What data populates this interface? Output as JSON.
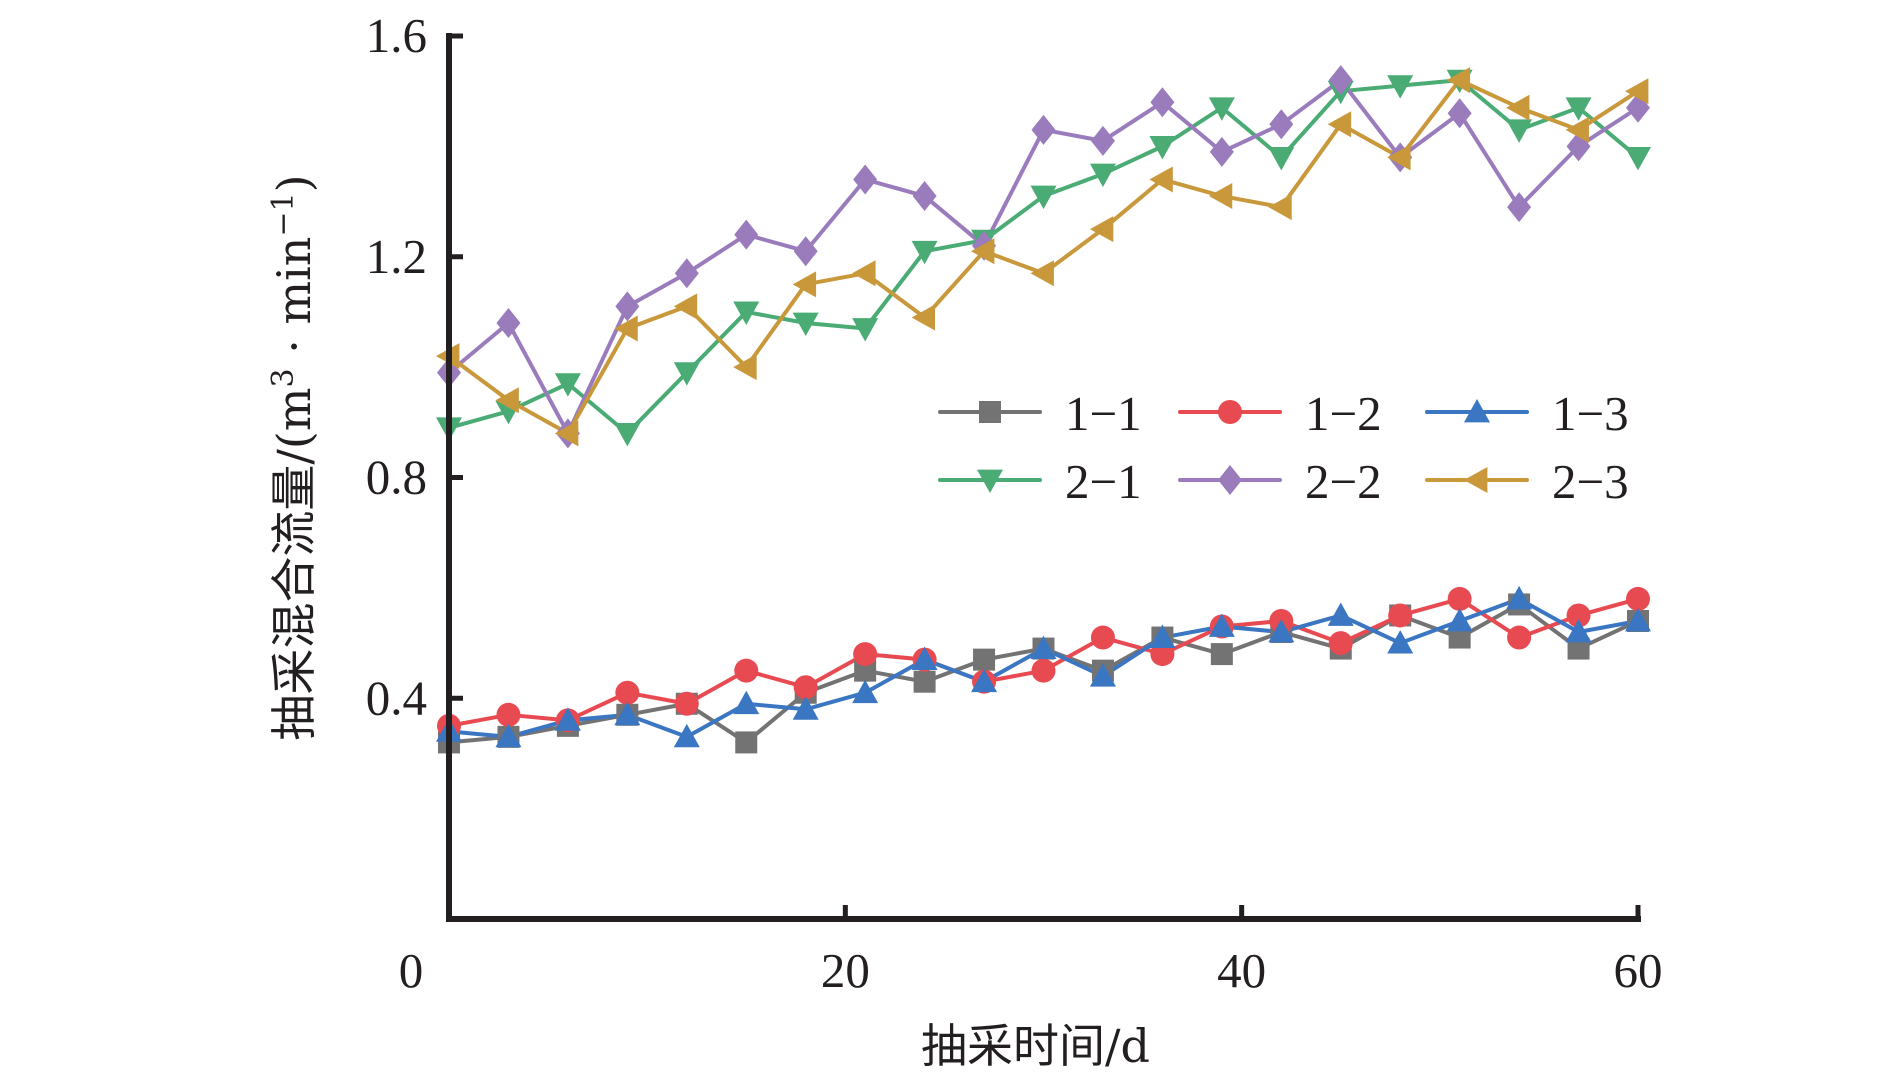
{
  "chart_data": {
    "type": "line",
    "title": "",
    "xlabel": "抽采时间/d",
    "ylabel": "抽采混合流量/(m³ · min⁻¹)",
    "ylabel_parts": {
      "main": "抽采混合流量/(m",
      "sup1": "3",
      "mid": " · min",
      "sup2": "−1",
      "end": ")"
    },
    "xlim": [
      0,
      60
    ],
    "ylim": [
      0,
      1.6
    ],
    "xticks": [
      0,
      20,
      40,
      60
    ],
    "xtick_labels": [
      "0",
      "20",
      "40",
      "60"
    ],
    "yticks": [
      0.4,
      0.8,
      1.2,
      1.6
    ],
    "ytick_labels": [
      "0.4",
      "0.8",
      "1.2",
      "1.6"
    ],
    "grid": false,
    "legend_position": "center-right",
    "x": [
      0,
      3,
      6,
      9,
      12,
      15,
      18,
      21,
      24,
      27,
      30,
      33,
      36,
      39,
      42,
      45,
      48,
      51,
      54,
      57,
      60
    ],
    "series": [
      {
        "name": "1-1",
        "color": "#737373",
        "marker": "square",
        "values": [
          0.32,
          0.33,
          0.35,
          0.37,
          0.39,
          0.32,
          0.41,
          0.45,
          0.43,
          0.47,
          0.49,
          0.45,
          0.51,
          0.48,
          0.52,
          0.49,
          0.55,
          0.51,
          0.57,
          0.49,
          0.54
        ]
      },
      {
        "name": "1-2",
        "color": "#e84a52",
        "marker": "circle",
        "values": [
          0.35,
          0.37,
          0.36,
          0.41,
          0.39,
          0.45,
          0.42,
          0.48,
          0.47,
          0.43,
          0.45,
          0.51,
          0.48,
          0.53,
          0.54,
          0.5,
          0.55,
          0.58,
          0.51,
          0.55,
          0.58
        ]
      },
      {
        "name": "1-3",
        "color": "#3a76c2",
        "marker": "triangle-up",
        "values": [
          0.34,
          0.33,
          0.36,
          0.37,
          0.33,
          0.39,
          0.38,
          0.41,
          0.47,
          0.43,
          0.49,
          0.44,
          0.51,
          0.53,
          0.52,
          0.55,
          0.5,
          0.54,
          0.58,
          0.52,
          0.54
        ]
      },
      {
        "name": "2-1",
        "color": "#4aab74",
        "marker": "triangle-down",
        "values": [
          0.89,
          0.92,
          0.97,
          0.88,
          0.99,
          1.1,
          1.08,
          1.07,
          1.21,
          1.23,
          1.31,
          1.35,
          1.4,
          1.47,
          1.38,
          1.5,
          1.51,
          1.52,
          1.43,
          1.47,
          1.38
        ]
      },
      {
        "name": "2-2",
        "color": "#9a7cbd",
        "marker": "diamond",
        "values": [
          0.99,
          1.08,
          0.88,
          1.11,
          1.17,
          1.24,
          1.21,
          1.34,
          1.31,
          1.22,
          1.43,
          1.41,
          1.48,
          1.39,
          1.44,
          1.52,
          1.38,
          1.46,
          1.29,
          1.4,
          1.47
        ]
      },
      {
        "name": "2-3",
        "color": "#c9983b",
        "marker": "triangle-left",
        "values": [
          1.02,
          0.94,
          0.88,
          1.07,
          1.11,
          1.0,
          1.15,
          1.17,
          1.09,
          1.21,
          1.17,
          1.25,
          1.34,
          1.31,
          1.29,
          1.44,
          1.38,
          1.52,
          1.47,
          1.43,
          1.5
        ]
      }
    ]
  }
}
